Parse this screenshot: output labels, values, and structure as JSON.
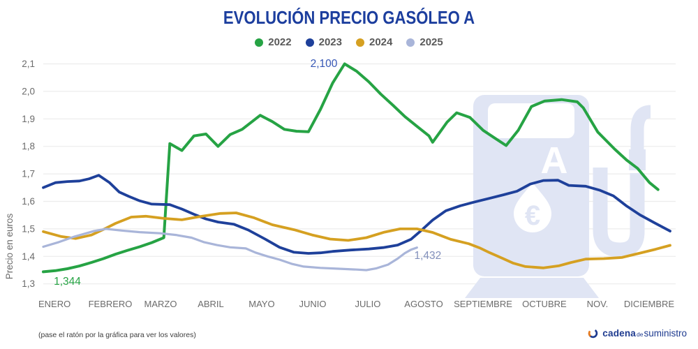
{
  "title": "EVOLUCIÓN PRECIO GASÓLEO A",
  "footer_note": "(pase el ratón por la gráfica para ver los valores)",
  "brand": {
    "word_bold": "cadena",
    "word_small": "de",
    "word_rest": "suministro"
  },
  "watermark": {
    "letter": "A",
    "currency": "€",
    "color": "#e0e5f4"
  },
  "colors": {
    "title": "#1c3e9e",
    "grid": "#ececec",
    "axis_text": "#6b6b6b",
    "legend_text": "#595959",
    "brand_blue": "#1d3a8f",
    "brand_orange": "#e87a1e"
  },
  "chart_data": {
    "type": "line",
    "title": "EVOLUCIÓN PRECIO GASÓLEO A",
    "ylabel": "Precio en euros",
    "ylim": [
      1.3,
      2.1
    ],
    "y_tick_values": [
      1.3,
      1.4,
      1.5,
      1.6,
      1.7,
      1.8,
      1.9,
      2.0,
      2.1
    ],
    "y_tick_labels": [
      "1,3",
      "1,4",
      "1,5",
      "1,6",
      "1,7",
      "1,8",
      "1,9",
      "2,0",
      "2,1"
    ],
    "x_domain_weeks": [
      0,
      52
    ],
    "grid": "horizontal",
    "legend_position": "top",
    "month_ticks": [
      {
        "label": "ENERO",
        "week": 0.93
      },
      {
        "label": "FEBRERO",
        "week": 5.56
      },
      {
        "label": "MARZO",
        "week": 9.73
      },
      {
        "label": "ABRIL",
        "week": 13.9
      },
      {
        "label": "MAYO",
        "week": 18.12
      },
      {
        "label": "JUNIO",
        "week": 22.35
      },
      {
        "label": "JULIO",
        "week": 26.92
      },
      {
        "label": "AGOSTO",
        "week": 31.56
      },
      {
        "label": "SEPTIEMBRE",
        "week": 36.48
      },
      {
        "label": "OCTUBRE",
        "week": 41.57
      },
      {
        "label": "NOV.",
        "week": 45.97
      },
      {
        "label": "DICIEMBRE",
        "week": 50.26
      }
    ],
    "series": [
      {
        "name": "2022",
        "color": "#26a344",
        "width": 4,
        "points": [
          [
            0,
            1.344
          ],
          [
            1,
            1.348
          ],
          [
            2,
            1.355
          ],
          [
            3,
            1.365
          ],
          [
            4,
            1.378
          ],
          [
            5,
            1.392
          ],
          [
            6,
            1.408
          ],
          [
            7,
            1.422
          ],
          [
            8,
            1.435
          ],
          [
            9,
            1.45
          ],
          [
            10,
            1.468
          ],
          [
            10.5,
            1.81
          ],
          [
            11.5,
            1.785
          ],
          [
            12.5,
            1.838
          ],
          [
            13.5,
            1.845
          ],
          [
            14.5,
            1.8
          ],
          [
            15.5,
            1.843
          ],
          [
            16.5,
            1.862
          ],
          [
            18,
            1.913
          ],
          [
            19,
            1.89
          ],
          [
            20,
            1.862
          ],
          [
            21,
            1.855
          ],
          [
            22,
            1.853
          ],
          [
            23,
            1.935
          ],
          [
            24,
            2.03
          ],
          [
            25,
            2.1
          ],
          [
            26,
            2.073
          ],
          [
            27,
            2.035
          ],
          [
            28,
            1.99
          ],
          [
            29,
            1.95
          ],
          [
            30,
            1.908
          ],
          [
            31,
            1.873
          ],
          [
            32,
            1.838
          ],
          [
            32.3,
            1.815
          ],
          [
            33.5,
            1.888
          ],
          [
            34.3,
            1.922
          ],
          [
            35.4,
            1.905
          ],
          [
            36.5,
            1.858
          ],
          [
            37.5,
            1.829
          ],
          [
            38.4,
            1.803
          ],
          [
            39.4,
            1.858
          ],
          [
            40.5,
            1.945
          ],
          [
            41.6,
            1.965
          ],
          [
            43,
            1.97
          ],
          [
            44.3,
            1.962
          ],
          [
            44.8,
            1.94
          ],
          [
            46,
            1.852
          ],
          [
            47.4,
            1.79
          ],
          [
            48.4,
            1.75
          ],
          [
            49.3,
            1.72
          ],
          [
            50.3,
            1.668
          ],
          [
            51,
            1.643
          ]
        ]
      },
      {
        "name": "2023",
        "color": "#1e409a",
        "width": 3.8,
        "points": [
          [
            0,
            1.65
          ],
          [
            1,
            1.668
          ],
          [
            2,
            1.672
          ],
          [
            3,
            1.674
          ],
          [
            3.8,
            1.682
          ],
          [
            4.6,
            1.695
          ],
          [
            5.5,
            1.668
          ],
          [
            6.3,
            1.634
          ],
          [
            7.1,
            1.618
          ],
          [
            8,
            1.602
          ],
          [
            9,
            1.59
          ],
          [
            10.5,
            1.588
          ],
          [
            11.5,
            1.572
          ],
          [
            12.5,
            1.553
          ],
          [
            13.5,
            1.536
          ],
          [
            14.5,
            1.525
          ],
          [
            15.8,
            1.517
          ],
          [
            17,
            1.496
          ],
          [
            18.4,
            1.463
          ],
          [
            19.6,
            1.433
          ],
          [
            20.8,
            1.415
          ],
          [
            22,
            1.411
          ],
          [
            23,
            1.413
          ],
          [
            24,
            1.418
          ],
          [
            25.5,
            1.423
          ],
          [
            27,
            1.427
          ],
          [
            28.2,
            1.432
          ],
          [
            29.4,
            1.441
          ],
          [
            30.5,
            1.462
          ],
          [
            31.3,
            1.492
          ],
          [
            32.3,
            1.532
          ],
          [
            33.4,
            1.566
          ],
          [
            34.6,
            1.584
          ],
          [
            35.8,
            1.598
          ],
          [
            37,
            1.611
          ],
          [
            38.2,
            1.624
          ],
          [
            39.3,
            1.637
          ],
          [
            40.4,
            1.663
          ],
          [
            41.5,
            1.676
          ],
          [
            42.7,
            1.677
          ],
          [
            43.6,
            1.658
          ],
          [
            45,
            1.655
          ],
          [
            46.2,
            1.64
          ],
          [
            47.3,
            1.62
          ],
          [
            48.4,
            1.583
          ],
          [
            49.5,
            1.551
          ],
          [
            50.7,
            1.522
          ],
          [
            52,
            1.492
          ]
        ]
      },
      {
        "name": "2024",
        "color": "#d5a021",
        "width": 3.8,
        "points": [
          [
            0,
            1.49
          ],
          [
            1.5,
            1.472
          ],
          [
            2.7,
            1.465
          ],
          [
            4,
            1.478
          ],
          [
            5,
            1.498
          ],
          [
            6,
            1.52
          ],
          [
            7.3,
            1.543
          ],
          [
            8.5,
            1.546
          ],
          [
            10,
            1.538
          ],
          [
            11.5,
            1.533
          ],
          [
            13,
            1.545
          ],
          [
            14.7,
            1.556
          ],
          [
            16,
            1.558
          ],
          [
            17.5,
            1.54
          ],
          [
            19,
            1.515
          ],
          [
            20.8,
            1.497
          ],
          [
            22.3,
            1.478
          ],
          [
            23.8,
            1.463
          ],
          [
            25.3,
            1.458
          ],
          [
            26.8,
            1.468
          ],
          [
            28.3,
            1.488
          ],
          [
            29.6,
            1.5
          ],
          [
            31,
            1.5
          ],
          [
            32.3,
            1.487
          ],
          [
            33.8,
            1.462
          ],
          [
            35.3,
            1.446
          ],
          [
            36.2,
            1.431
          ],
          [
            37,
            1.414
          ],
          [
            38.1,
            1.393
          ],
          [
            39,
            1.375
          ],
          [
            40,
            1.363
          ],
          [
            41.5,
            1.358
          ],
          [
            42.8,
            1.366
          ],
          [
            43.8,
            1.378
          ],
          [
            45,
            1.39
          ],
          [
            46.5,
            1.392
          ],
          [
            48,
            1.396
          ],
          [
            49.5,
            1.412
          ],
          [
            50.8,
            1.426
          ],
          [
            52,
            1.44
          ]
        ]
      },
      {
        "name": "2025",
        "color": "#a9b5d9",
        "width": 3.2,
        "points": [
          [
            0,
            1.435
          ],
          [
            1.3,
            1.452
          ],
          [
            2.6,
            1.472
          ],
          [
            4.2,
            1.492
          ],
          [
            5.2,
            1.5
          ],
          [
            6.5,
            1.494
          ],
          [
            8,
            1.488
          ],
          [
            9.7,
            1.484
          ],
          [
            11,
            1.478
          ],
          [
            12.3,
            1.468
          ],
          [
            13.3,
            1.452
          ],
          [
            14.4,
            1.441
          ],
          [
            15.5,
            1.433
          ],
          [
            16.8,
            1.429
          ],
          [
            17.6,
            1.414
          ],
          [
            18.6,
            1.4
          ],
          [
            19.6,
            1.388
          ],
          [
            20.6,
            1.373
          ],
          [
            21.6,
            1.363
          ],
          [
            23,
            1.358
          ],
          [
            24.5,
            1.355
          ],
          [
            26,
            1.352
          ],
          [
            26.8,
            1.35
          ],
          [
            27.6,
            1.356
          ],
          [
            28.6,
            1.37
          ],
          [
            29.4,
            1.392
          ],
          [
            30,
            1.412
          ],
          [
            30.5,
            1.424
          ],
          [
            31,
            1.432
          ]
        ]
      }
    ],
    "annotations": [
      {
        "text": "1,344",
        "week": 2.0,
        "value": 1.297,
        "color": "#26a344"
      },
      {
        "text": "2,100",
        "week": 23.28,
        "value": 2.089,
        "color": "#3556b5"
      },
      {
        "text": "1,432",
        "week": 31.9,
        "value": 1.391,
        "color": "#8290bb"
      }
    ]
  }
}
